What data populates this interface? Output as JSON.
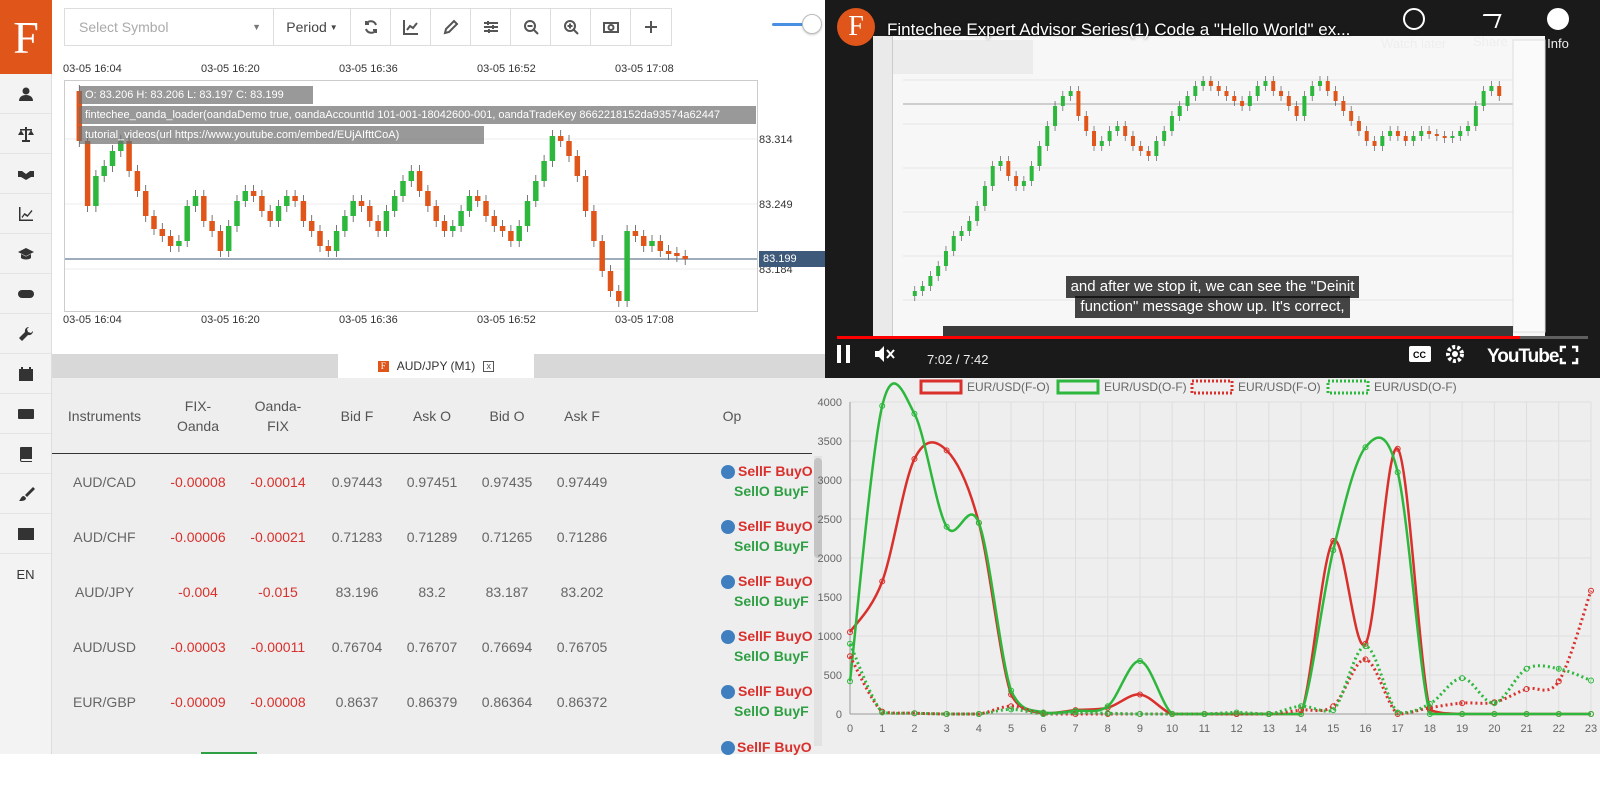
{
  "sidebar": {
    "logo": "F",
    "items": [
      {
        "name": "user-icon"
      },
      {
        "name": "balance-icon"
      },
      {
        "name": "handshake-icon"
      },
      {
        "name": "chart-line-icon"
      },
      {
        "name": "graduation-cap-icon"
      },
      {
        "name": "gamepad-icon"
      },
      {
        "name": "wrench-icon"
      },
      {
        "name": "calendar-icon"
      },
      {
        "name": "keyboard-icon"
      },
      {
        "name": "book-icon"
      },
      {
        "name": "paintbrush-icon"
      },
      {
        "name": "table-icon"
      }
    ],
    "language": "EN"
  },
  "chart_toolbar": {
    "symbol_placeholder": "Select Symbol",
    "period_label": "Period"
  },
  "candle_chart": {
    "time_labels": [
      "03-05 16:04",
      "03-05 16:20",
      "03-05 16:36",
      "03-05 16:52",
      "03-05 17:08"
    ],
    "price_labels": [
      "83.314",
      "83.249",
      "83.184"
    ],
    "current_price": "83.199",
    "ohlc_text": "O: 83.206 H: 83.206 L: 83.197 C: 83.199",
    "loader_text": "fintechee_oanda_loader(oandaDemo true, oandaAccountId 101-001-18042600-001, oandaTradeKey 8662218152da93574a62447",
    "video_text": "tutorial_videos(url https://www.youtube.com/embed/EUjAIfttCoA)",
    "up_color": "#2db83d",
    "down_color": "#e0561a"
  },
  "tab": {
    "label": "AUD/JPY (M1)",
    "close": "x"
  },
  "table": {
    "headers": [
      "Instruments",
      "FIX-Oanda",
      "Oanda-FIX",
      "Bid F",
      "Ask O",
      "Bid O",
      "Ask F",
      "Op"
    ],
    "rows": [
      {
        "instrument": "AUD/CAD",
        "fix_oanda": "-0.00008",
        "oanda_fix": "-0.00014",
        "bid_f": "0.97443",
        "ask_o": "0.97451",
        "bid_o": "0.97435",
        "ask_f": "0.97449"
      },
      {
        "instrument": "AUD/CHF",
        "fix_oanda": "-0.00006",
        "oanda_fix": "-0.00021",
        "bid_f": "0.71283",
        "ask_o": "0.71289",
        "bid_o": "0.71265",
        "ask_f": "0.71286"
      },
      {
        "instrument": "AUD/JPY",
        "fix_oanda": "-0.004",
        "oanda_fix": "-0.015",
        "bid_f": "83.196",
        "ask_o": "83.2",
        "bid_o": "83.187",
        "ask_f": "83.202"
      },
      {
        "instrument": "AUD/USD",
        "fix_oanda": "-0.00003",
        "oanda_fix": "-0.00011",
        "bid_f": "0.76704",
        "ask_o": "0.76707",
        "bid_o": "0.76694",
        "ask_f": "0.76705"
      },
      {
        "instrument": "EUR/GBP",
        "fix_oanda": "-0.00009",
        "oanda_fix": "-0.00008",
        "bid_f": "0.8637",
        "ask_o": "0.86379",
        "bid_o": "0.86364",
        "ask_f": "0.86372"
      }
    ],
    "op_labels": {
      "sell_f": "SellF",
      "buy_o": "BuyO",
      "sell_o": "SellO",
      "buy_f": "BuyF"
    },
    "partial_row_op": "SellF BuyO"
  },
  "video": {
    "logo": "F",
    "title": "Fintechee Expert Advisor Series(1) Code a \"Hello World\" ex...",
    "watch_later": "Watch later",
    "share": "Share",
    "info": "Info",
    "subtitle_line1": "and after we stop it, we can see the \"Deinit",
    "subtitle_line2": "function\" message show up. It's correct,",
    "time": "7:02 / 7:42",
    "progress": 0.91,
    "brand": "YouTube"
  },
  "chart_data": {
    "type": "line",
    "x": [
      0,
      1,
      2,
      3,
      4,
      5,
      6,
      7,
      8,
      9,
      10,
      11,
      12,
      13,
      14,
      15,
      16,
      17,
      18,
      19,
      20,
      21,
      22,
      23
    ],
    "ylim": [
      0,
      4000
    ],
    "y_ticks": [
      0,
      500,
      1000,
      1500,
      2000,
      2500,
      3000,
      3500,
      4000
    ],
    "series": [
      {
        "name": "EUR/USD(F-O)",
        "color": "#d9302c",
        "dash": false,
        "values": [
          1050,
          1700,
          3270,
          3380,
          2450,
          250,
          10,
          50,
          80,
          250,
          0,
          0,
          0,
          0,
          0,
          2220,
          900,
          3400,
          50,
          0,
          0,
          0,
          0,
          0
        ]
      },
      {
        "name": "EUR/USD(O-F)",
        "color": "#2db83d",
        "dash": false,
        "values": [
          420,
          3950,
          3850,
          2400,
          2450,
          300,
          20,
          40,
          100,
          680,
          0,
          0,
          0,
          0,
          0,
          2100,
          3420,
          3100,
          0,
          0,
          0,
          0,
          0,
          0
        ]
      },
      {
        "name": "EUR/USD(F-O)",
        "color": "#d9302c",
        "dash": true,
        "values": [
          740,
          30,
          10,
          0,
          0,
          100,
          0,
          0,
          0,
          0,
          0,
          0,
          0,
          0,
          50,
          100,
          700,
          0,
          80,
          140,
          150,
          320,
          420,
          1580
        ]
      },
      {
        "name": "EUR/USD(O-F)",
        "color": "#2db83d",
        "dash": true,
        "values": [
          900,
          20,
          10,
          0,
          0,
          60,
          0,
          20,
          10,
          0,
          0,
          0,
          20,
          0,
          100,
          50,
          870,
          20,
          130,
          460,
          140,
          580,
          580,
          430
        ]
      }
    ],
    "legend": "top",
    "grid": true
  }
}
